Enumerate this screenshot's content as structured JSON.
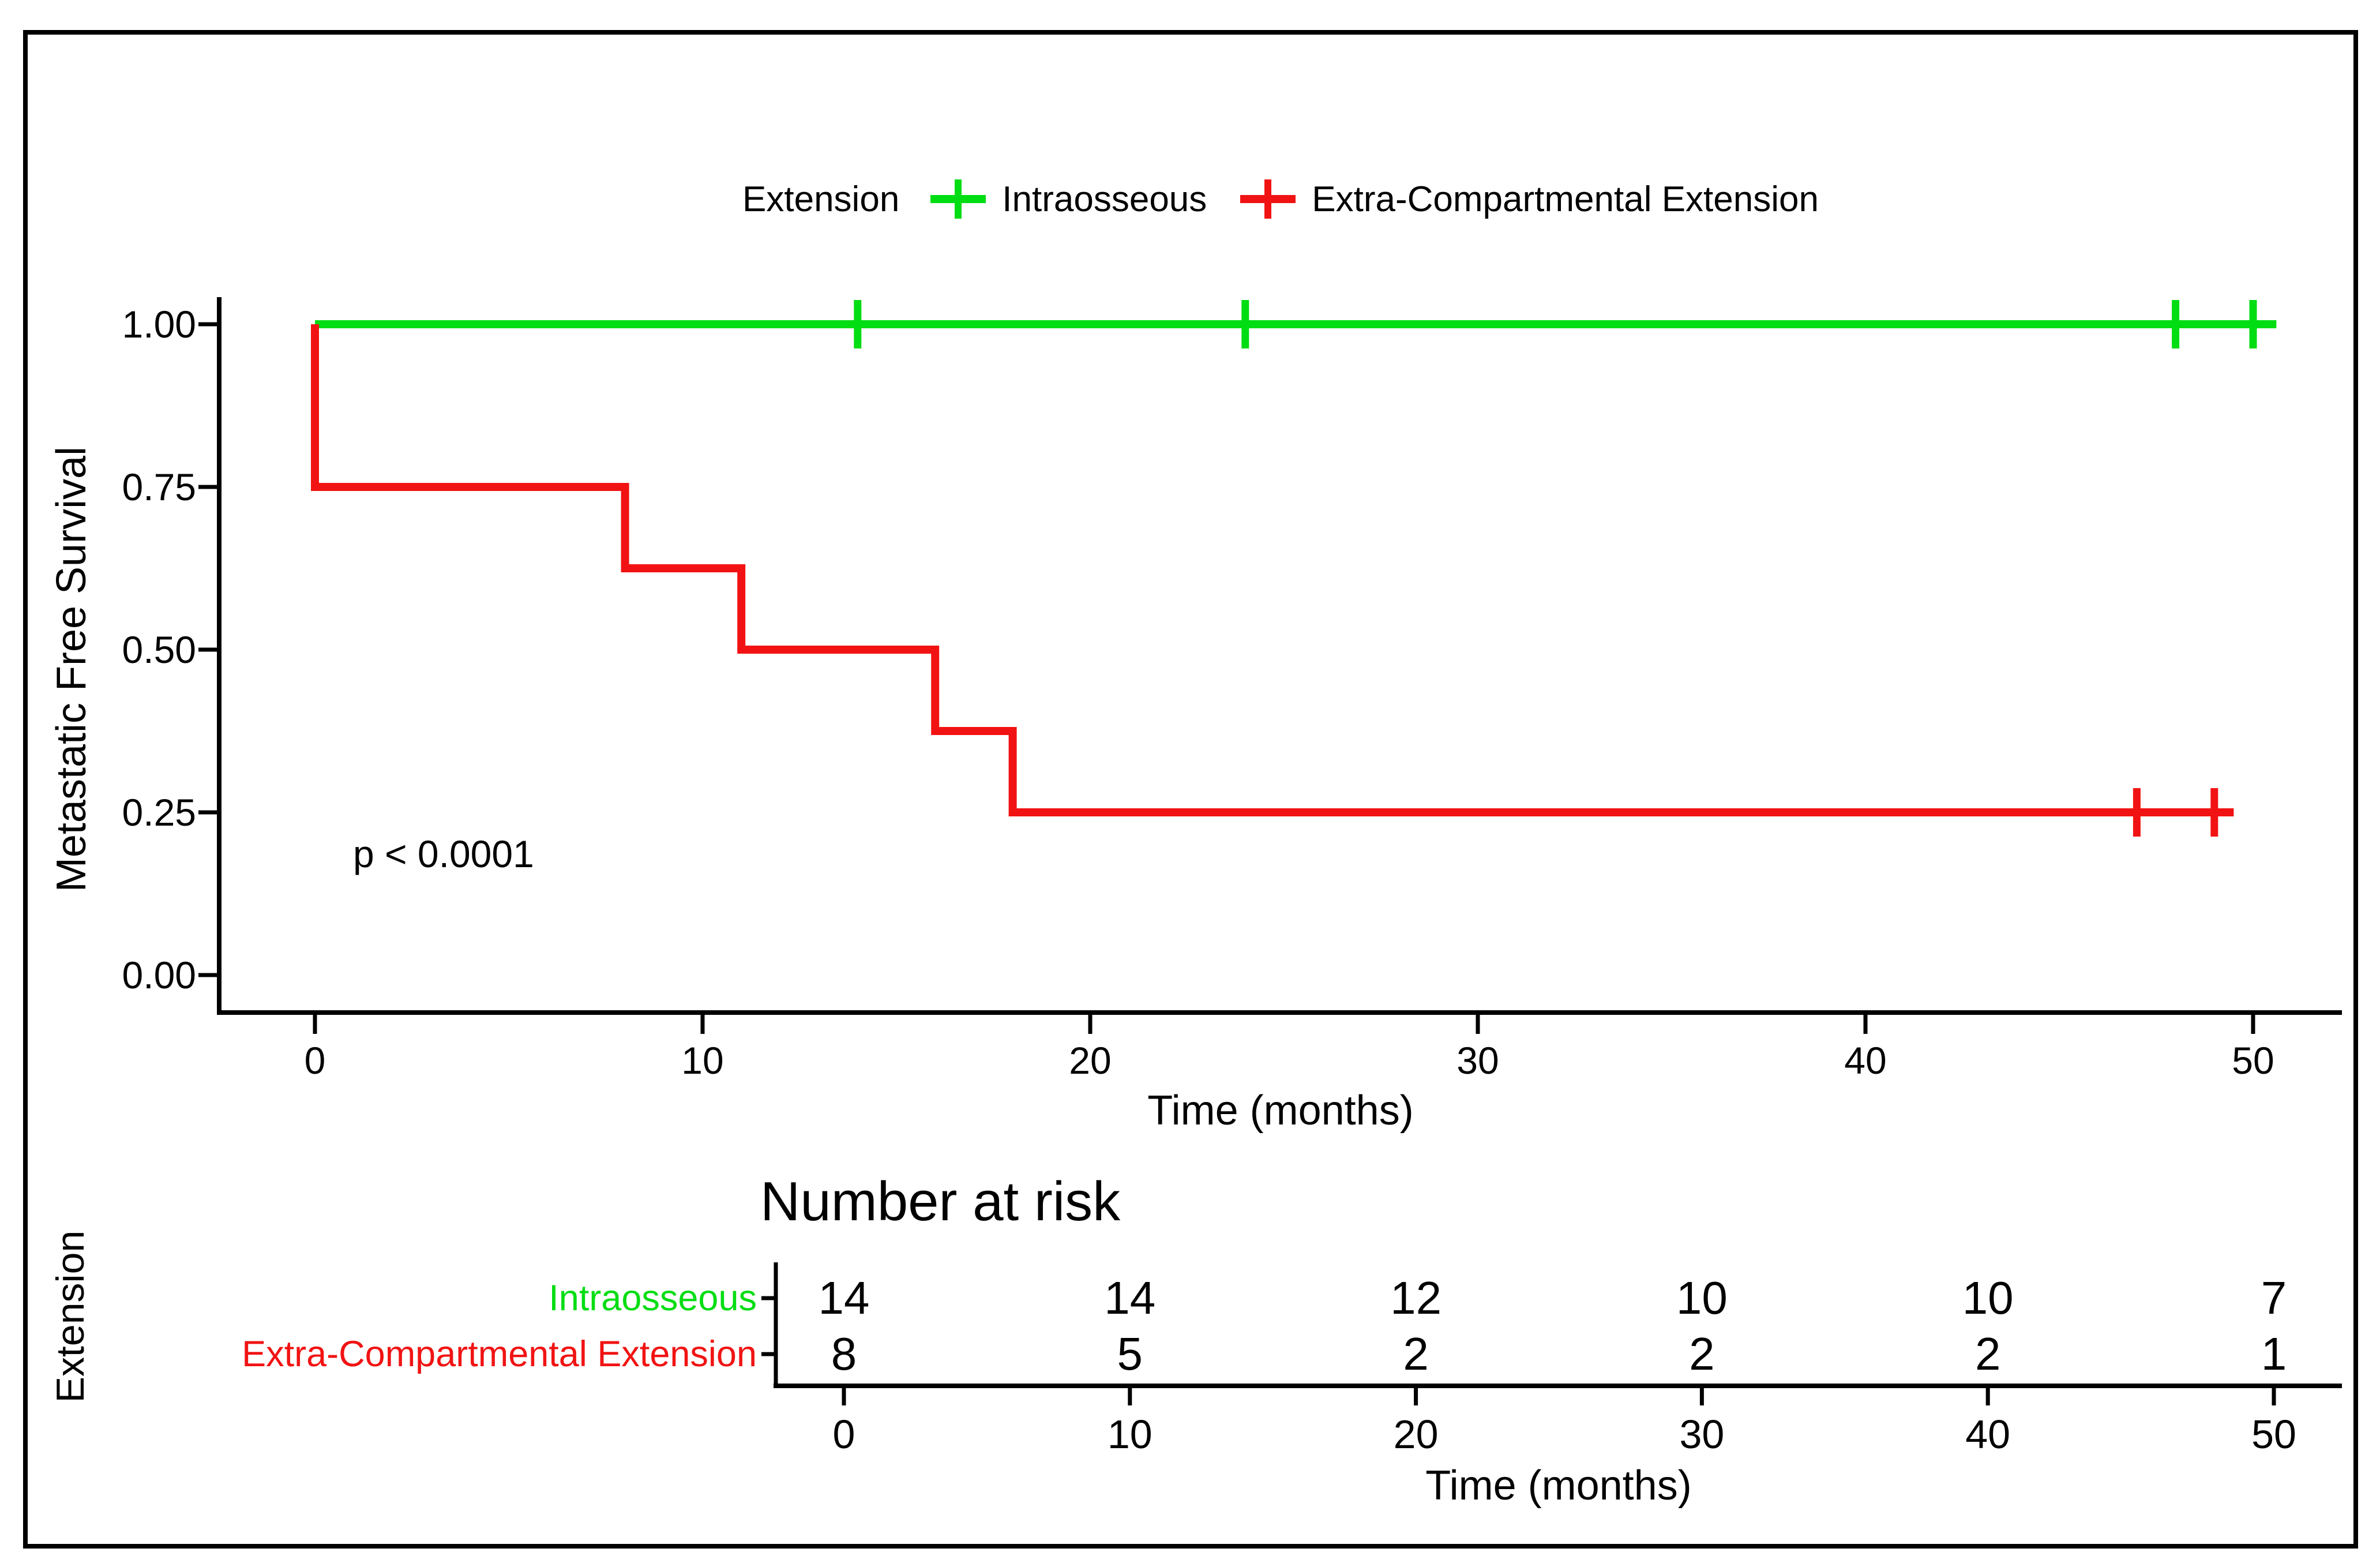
{
  "figure": {
    "background": "#ffffff",
    "border_color": "#000000"
  },
  "legend": {
    "title": "Extension",
    "entries": [
      {
        "label": "Intraosseous",
        "color": "#00dd12",
        "key_icon": "line-with-censor-cross"
      },
      {
        "label": "Extra-Compartmental Extension",
        "color": "#f11313",
        "key_icon": "line-with-censor-cross"
      }
    ]
  },
  "main_plot": {
    "ylabel": "Metastatic Free Survival",
    "xlabel": "Time (months)",
    "p_value_text": "p < 0.0001",
    "y_tick_labels": [
      "1.00",
      "0.75",
      "0.50",
      "0.25",
      "0.00"
    ],
    "x_tick_labels": [
      "0",
      "10",
      "20",
      "30",
      "40",
      "50"
    ]
  },
  "risk_table": {
    "title": "Number at risk",
    "group_axis_label": "Extension",
    "xlabel": "Time (months)",
    "x_tick_labels": [
      "0",
      "10",
      "20",
      "30",
      "40",
      "50"
    ],
    "rows": [
      {
        "label": "Intraosseous",
        "color": "#00dd12",
        "values": [
          "14",
          "14",
          "12",
          "10",
          "10",
          "7"
        ]
      },
      {
        "label": "Extra-Compartmental Extension",
        "color": "#f11313",
        "values": [
          "8",
          "5",
          "2",
          "2",
          "2",
          "1"
        ]
      }
    ]
  },
  "chart_data": {
    "type": "line",
    "subtype": "kaplan-meier-step",
    "title": "",
    "xlabel": "Time (months)",
    "ylabel": "Metastatic Free Survival",
    "xlim": [
      0,
      52
    ],
    "ylim": [
      0,
      1.0
    ],
    "x_ticks": [
      0,
      10,
      20,
      30,
      40,
      50
    ],
    "y_ticks": [
      0,
      0.25,
      0.5,
      0.75,
      1.0
    ],
    "grid": false,
    "legend_position": "top",
    "annotations": [
      {
        "text": "p < 0.0001",
        "x": 4.5,
        "y": 0.21
      }
    ],
    "series": [
      {
        "name": "Intraosseous",
        "color": "#00dd12",
        "steps": [
          [
            0,
            1.0
          ],
          [
            50.6,
            1.0
          ]
        ],
        "censor_marks": [
          [
            14,
            1.0
          ],
          [
            24,
            1.0
          ],
          [
            48,
            1.0
          ],
          [
            50,
            1.0
          ]
        ]
      },
      {
        "name": "Extra-Compartmental Extension",
        "color": "#f11313",
        "steps": [
          [
            0,
            1.0
          ],
          [
            0,
            0.75
          ],
          [
            8,
            0.75
          ],
          [
            8,
            0.625
          ],
          [
            11,
            0.625
          ],
          [
            11,
            0.5
          ],
          [
            16,
            0.5
          ],
          [
            16,
            0.375
          ],
          [
            18,
            0.375
          ],
          [
            18,
            0.25
          ],
          [
            49.5,
            0.25
          ]
        ],
        "censor_marks": [
          [
            47,
            0.25
          ],
          [
            49,
            0.25
          ]
        ]
      }
    ],
    "number_at_risk": {
      "times": [
        0,
        10,
        20,
        30,
        40,
        50
      ],
      "groups": [
        {
          "name": "Intraosseous",
          "counts": [
            14,
            14,
            12,
            10,
            10,
            7
          ]
        },
        {
          "name": "Extra-Compartmental Extension",
          "counts": [
            8,
            5,
            2,
            2,
            2,
            1
          ]
        }
      ]
    }
  }
}
